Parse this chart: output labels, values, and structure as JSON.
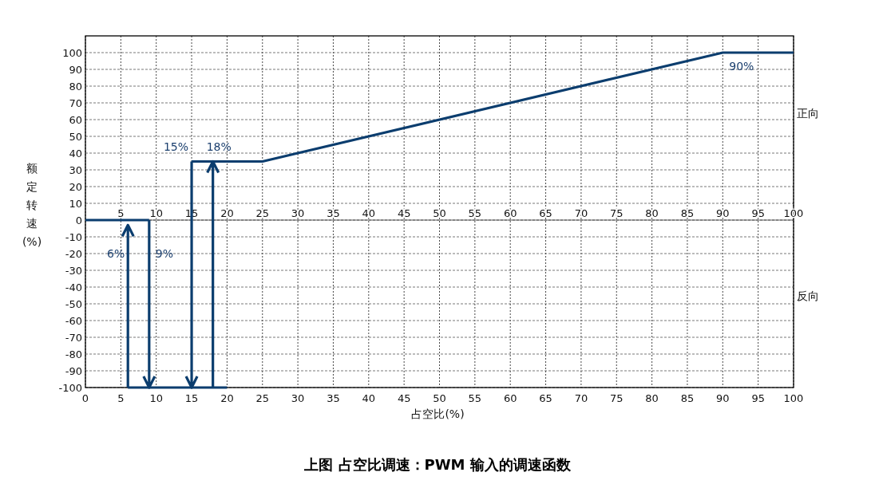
{
  "chart_data": {
    "type": "line",
    "title": "上图 占空比调速：PWM 输入的调速函数",
    "xlabel": "占空比(%)",
    "ylabel": "额定转速(%)",
    "xlim": [
      0,
      100
    ],
    "xticks": [
      0,
      5,
      10,
      15,
      20,
      25,
      30,
      35,
      40,
      45,
      50,
      55,
      60,
      65,
      70,
      75,
      80,
      85,
      90,
      95,
      100
    ],
    "x2lim": [
      0,
      100
    ],
    "x2ticks": [
      5,
      10,
      15,
      20,
      25,
      30,
      35,
      40,
      45,
      50,
      55,
      60,
      65,
      70,
      75,
      80,
      85,
      90,
      95,
      100
    ],
    "ylim": [
      -100,
      110
    ],
    "yticks": [
      -100,
      -90,
      -80,
      -70,
      -60,
      -50,
      -40,
      -30,
      -20,
      -10,
      0,
      10,
      20,
      30,
      40,
      50,
      60,
      70,
      80,
      90,
      100
    ],
    "grid": true,
    "line_style": "solid",
    "series": [
      {
        "color": "#0b3d6e",
        "x": [
          0,
          9
        ],
        "values": [
          0,
          0
        ]
      },
      {
        "color": "#0b3d6e",
        "x": [
          9,
          9
        ],
        "values": [
          0,
          -100
        ]
      },
      {
        "color": "#0b3d6e",
        "x": [
          6,
          6
        ],
        "values": [
          -100,
          -3
        ]
      },
      {
        "color": "#0b3d6e",
        "x": [
          6,
          20
        ],
        "values": [
          -100,
          -100
        ]
      },
      {
        "color": "#0b3d6e",
        "x": [
          15,
          15
        ],
        "values": [
          35,
          -100
        ]
      },
      {
        "color": "#0b3d6e",
        "x": [
          18,
          18
        ],
        "values": [
          -100,
          35
        ]
      },
      {
        "color": "#0b3d6e",
        "x": [
          15,
          25,
          90,
          100
        ],
        "values": [
          35,
          35,
          100,
          100
        ]
      }
    ],
    "annotations": [
      {
        "text": "6%",
        "x": 6,
        "y": -20
      },
      {
        "text": "9%",
        "x": 9,
        "y": -20
      },
      {
        "text": "15%",
        "x": 15,
        "y": 35
      },
      {
        "text": "18%",
        "x": 18,
        "y": 35
      },
      {
        "text": "90%",
        "x": 90,
        "y": 100
      },
      "正向",
      "反向"
    ]
  }
}
